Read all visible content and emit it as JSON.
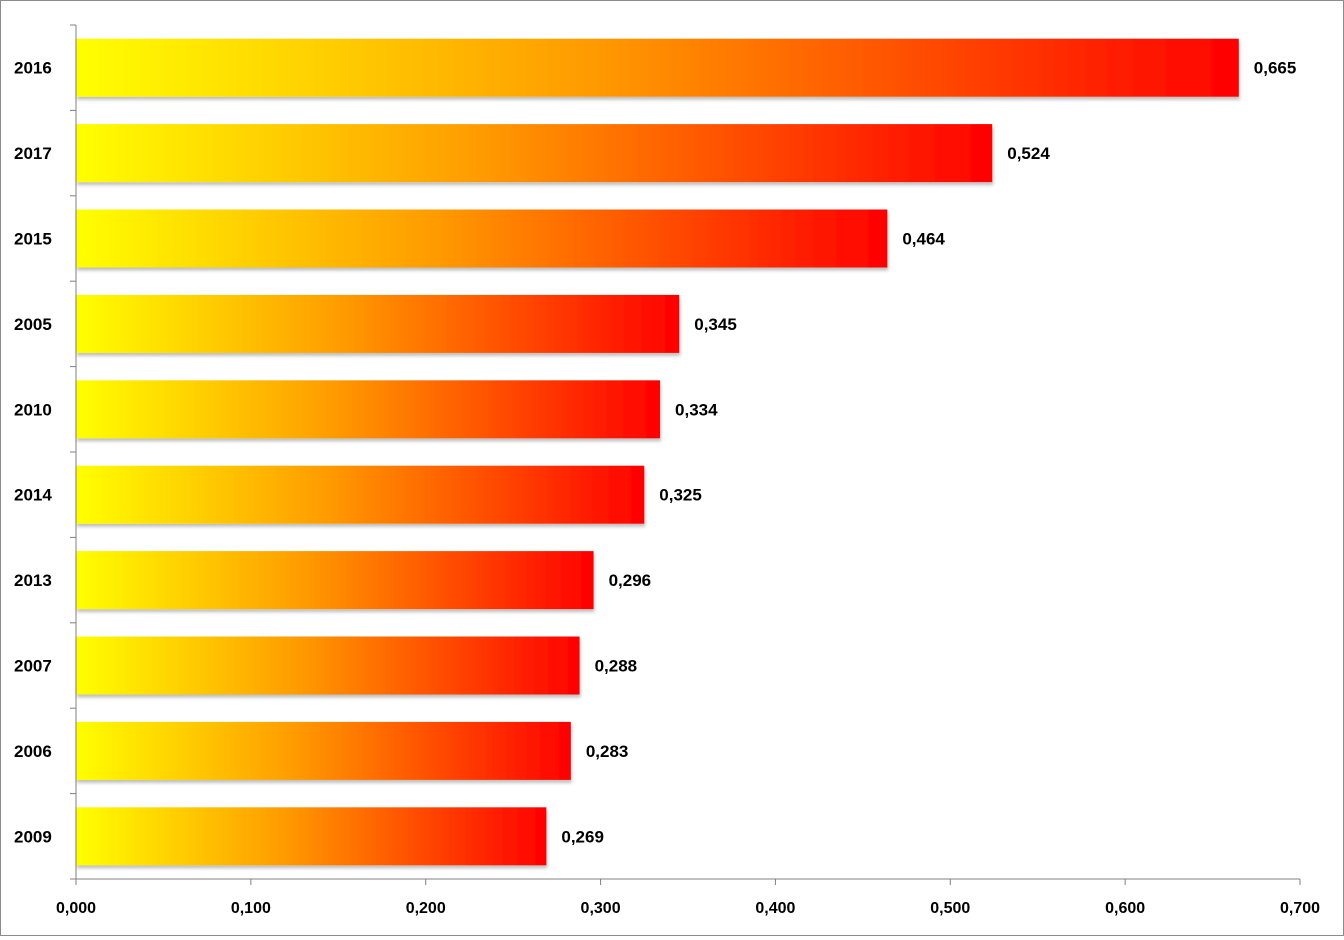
{
  "chart_data": {
    "type": "bar",
    "orientation": "horizontal",
    "categories": [
      "2016",
      "2017",
      "2015",
      "2005",
      "2010",
      "2014",
      "2013",
      "2007",
      "2006",
      "2009"
    ],
    "values": [
      0.665,
      0.524,
      0.464,
      0.345,
      0.334,
      0.325,
      0.296,
      0.288,
      0.283,
      0.269
    ],
    "data_labels": [
      "0,665",
      "0,524",
      "0,464",
      "0,345",
      "0,334",
      "0,325",
      "0,296",
      "0,288",
      "0,283",
      "0,269"
    ],
    "x_ticks": [
      0,
      0.1,
      0.2,
      0.3,
      0.4,
      0.5,
      0.6,
      0.7
    ],
    "x_tick_labels": [
      "0,000",
      "0,100",
      "0,200",
      "0,300",
      "0,400",
      "0,500",
      "0,600",
      "0,700"
    ],
    "xlim": [
      0,
      0.7
    ],
    "title": "",
    "xlabel": "",
    "ylabel": "",
    "grid": false,
    "legend": "none",
    "bar_gradient": {
      "start": "#ffff00",
      "middle": "#ff9900",
      "end": "#ff0000"
    },
    "axis_color": "#808080"
  }
}
